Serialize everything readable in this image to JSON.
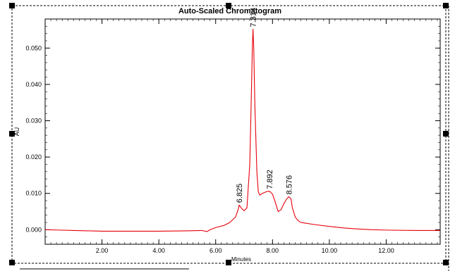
{
  "chart_data": {
    "type": "line",
    "title": "Auto-Scaled Chromatogram",
    "xlabel": "Minutes",
    "ylabel": "AU",
    "xlim": [
      0.0,
      13.9
    ],
    "ylim": [
      -0.004,
      0.058
    ],
    "grid": false,
    "legend": "none",
    "x_ticks": [
      {
        "value": 2.0,
        "label": "2.00"
      },
      {
        "value": 4.0,
        "label": "4.00"
      },
      {
        "value": 6.0,
        "label": "6.00"
      },
      {
        "value": 8.0,
        "label": "8.00"
      },
      {
        "value": 10.0,
        "label": "10.00"
      },
      {
        "value": 12.0,
        "label": "12.00"
      }
    ],
    "x_minor_step": 0.2,
    "y_ticks": [
      {
        "value": 0.0,
        "label": "0.000"
      },
      {
        "value": 0.01,
        "label": "0.010"
      },
      {
        "value": 0.02,
        "label": "0.020"
      },
      {
        "value": 0.03,
        "label": "0.030"
      },
      {
        "value": 0.04,
        "label": "0.040"
      },
      {
        "value": 0.05,
        "label": "0.050"
      }
    ],
    "y_minor_step": 0.002,
    "series": [
      {
        "color": "#e8000b",
        "x": [
          0.0,
          0.5,
          1.0,
          1.5,
          2.0,
          3.0,
          4.0,
          5.0,
          5.5,
          5.7,
          5.8,
          6.0,
          6.3,
          6.5,
          6.7,
          6.8,
          6.825,
          6.9,
          7.0,
          7.1,
          7.2,
          7.25,
          7.29,
          7.314,
          7.34,
          7.38,
          7.45,
          7.5,
          7.55,
          7.6,
          7.7,
          7.8,
          7.892,
          8.0,
          8.1,
          8.2,
          8.3,
          8.4,
          8.5,
          8.576,
          8.65,
          8.7,
          8.8,
          8.9,
          9.0,
          9.5,
          10.0,
          10.5,
          11.0,
          11.5,
          12.0,
          13.0,
          13.9
        ],
        "y": [
          0.0,
          -0.0001,
          -0.0002,
          -0.0003,
          -0.0004,
          -0.0004,
          -0.0004,
          -0.0003,
          -0.0002,
          -0.0005,
          0.0,
          0.0006,
          0.0012,
          0.002,
          0.0035,
          0.0058,
          0.0068,
          0.006,
          0.0052,
          0.006,
          0.018,
          0.035,
          0.05,
          0.0552,
          0.05,
          0.034,
          0.016,
          0.0105,
          0.0095,
          0.0098,
          0.0102,
          0.0105,
          0.0106,
          0.0098,
          0.0075,
          0.005,
          0.0055,
          0.0072,
          0.0085,
          0.0091,
          0.0085,
          0.006,
          0.0035,
          0.0025,
          0.002,
          0.0014,
          0.0009,
          0.0005,
          0.0002,
          0.0,
          -0.0001,
          -0.0002,
          -0.0002
        ]
      }
    ],
    "annotations": [
      {
        "label": "6.825",
        "x": 6.825,
        "y": 0.0068
      },
      {
        "label": "7.314",
        "x": 7.314,
        "y": 0.0552
      },
      {
        "label": "7.892",
        "x": 7.892,
        "y": 0.0106
      },
      {
        "label": "8.576",
        "x": 8.576,
        "y": 0.0091
      }
    ]
  }
}
